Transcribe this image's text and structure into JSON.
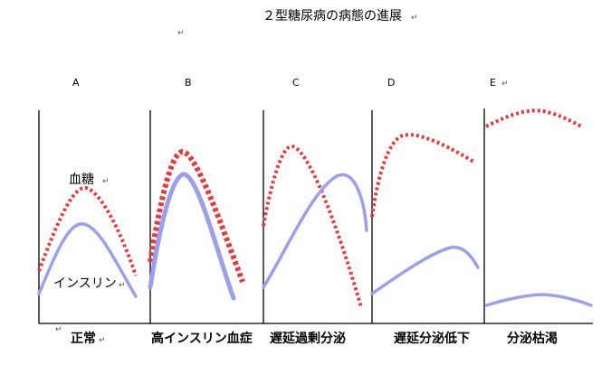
{
  "title": "２型糖尿病の病態の進展",
  "colors": {
    "glucose": "#e8383b",
    "insulin": "#9a9ff0",
    "axis": "#000000"
  },
  "series_labels": {
    "glucose": "血糖",
    "insulin": "インスリン"
  },
  "panels": [
    {
      "label": "A",
      "caption": "正常"
    },
    {
      "label": "B",
      "caption": "高インスリン血症"
    },
    {
      "label": "C",
      "caption": "遅延過剰分泌"
    },
    {
      "label": "D",
      "caption": "遅延分泌低下"
    },
    {
      "label": "E",
      "caption": "分泌枯渇"
    }
  ]
}
